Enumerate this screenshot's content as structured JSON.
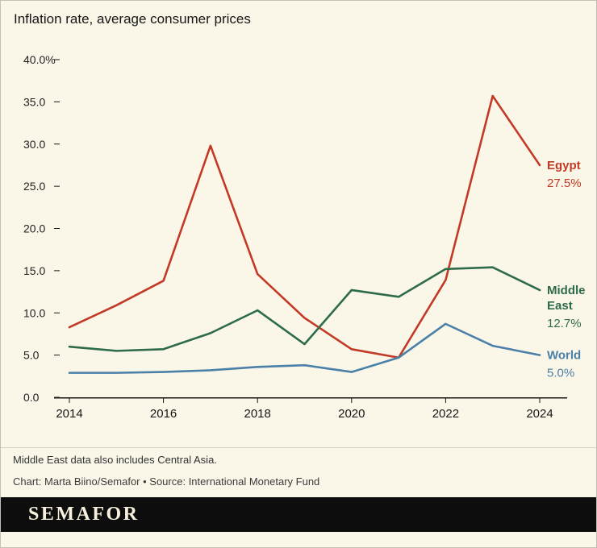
{
  "header": {
    "title": "Inflation rate, average consumer prices"
  },
  "notes": {
    "note": "Middle East data also includes Central Asia.",
    "credit": "Chart: Marta Biino/Semafor • Source: International Monetary Fund"
  },
  "brand": {
    "logo_text": "SEMAFOR"
  },
  "colors": {
    "egypt": "#c23a26",
    "middle_east": "#2e6b4a",
    "world": "#4b80a8",
    "background": "#faf6e8",
    "brand_bar": "#0d0d0d"
  },
  "chart_data": {
    "type": "line",
    "title": "Inflation rate, average consumer prices",
    "xlabel": "",
    "ylabel": "",
    "grid": false,
    "legend_position": "right-end-labels",
    "x": [
      2014,
      2015,
      2016,
      2017,
      2018,
      2019,
      2020,
      2021,
      2022,
      2023,
      2024
    ],
    "x_ticks": [
      2014,
      2016,
      2018,
      2020,
      2022,
      2024
    ],
    "x_tick_labels": [
      "2014",
      "2016",
      "2018",
      "2020",
      "2022",
      "2024"
    ],
    "ylim": [
      0,
      40
    ],
    "y_ticks": [
      {
        "value": 0,
        "label": "0.0"
      },
      {
        "value": 5,
        "label": "5.0"
      },
      {
        "value": 10,
        "label": "10.0"
      },
      {
        "value": 15,
        "label": "15.0"
      },
      {
        "value": 20,
        "label": "20.0"
      },
      {
        "value": 25,
        "label": "25.0"
      },
      {
        "value": 30,
        "label": "30.0"
      },
      {
        "value": 35,
        "label": "35.0"
      },
      {
        "value": 40,
        "label": "40.0%"
      }
    ],
    "series": [
      {
        "id": "egypt",
        "name": "Egypt",
        "color": "#c23a26",
        "label_lines": [
          "Egypt"
        ],
        "end_value_label": "27.5%",
        "values": [
          8.3,
          10.9,
          13.8,
          29.8,
          14.6,
          9.4,
          5.7,
          4.7,
          13.9,
          35.7,
          27.5
        ]
      },
      {
        "id": "middle-east",
        "name": "Middle East",
        "color": "#2e6b4a",
        "label_lines": [
          "Middle",
          "East"
        ],
        "end_value_label": "12.7%",
        "values": [
          6.0,
          5.5,
          5.7,
          7.6,
          10.3,
          6.3,
          12.7,
          11.9,
          15.2,
          15.4,
          12.7
        ]
      },
      {
        "id": "world",
        "name": "World",
        "color": "#4b80a8",
        "label_lines": [
          "World"
        ],
        "end_value_label": "5.0%",
        "values": [
          2.9,
          2.9,
          3.0,
          3.2,
          3.6,
          3.8,
          3.0,
          4.7,
          8.7,
          6.1,
          5.0
        ]
      }
    ]
  }
}
